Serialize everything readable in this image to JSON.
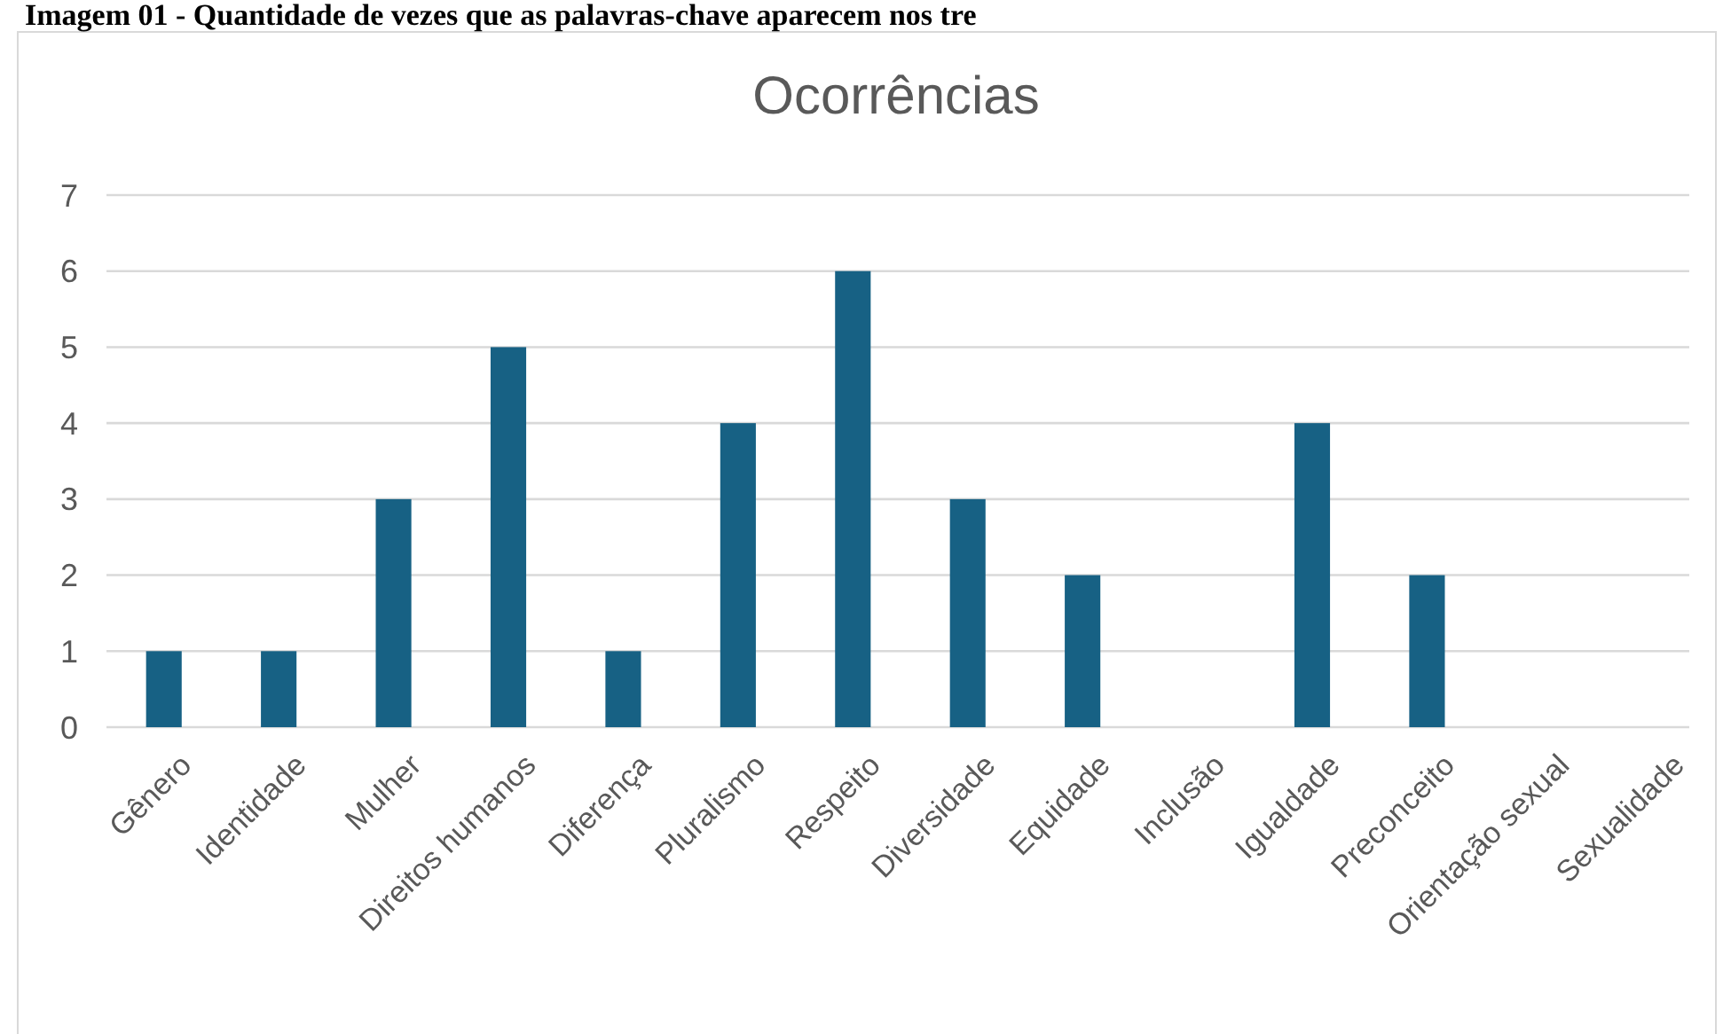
{
  "chart_data": {
    "type": "bar",
    "title": "Ocorrências",
    "annotations": [
      "Imagem 01 - Quantidade de vezes que as palavras-chave aparecem nos tre"
    ],
    "categories": [
      "Gênero",
      "Identidade",
      "Mulher",
      "Direitos humanos",
      "Diferença",
      "Pluralismo",
      "Respeito",
      "Diversidade",
      "Equidade",
      "Inclusão",
      "Igualdade",
      "Preconceito",
      "Orientação sexual",
      "Sexualidade"
    ],
    "values": [
      1,
      1,
      3,
      5,
      1,
      4,
      6,
      3,
      2,
      0,
      4,
      2,
      0,
      0
    ],
    "color": "#176184",
    "ylim": [
      0,
      7
    ],
    "yticks": [
      0,
      1,
      2,
      3,
      4,
      5,
      6,
      7
    ],
    "grid": "y"
  }
}
